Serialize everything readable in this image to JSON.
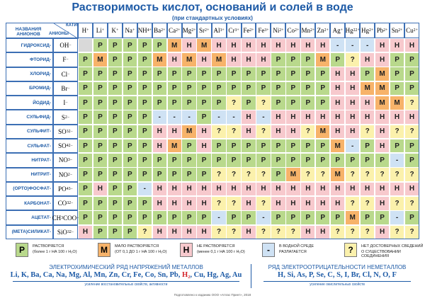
{
  "header": {
    "title": "Растворимость кислот, оснований и солей в воде",
    "subtitle": "(при стандартных условиях)",
    "corner_cations": "КАТИОНЫ",
    "corner_names": "НАЗВАНИЯ АНИОНОВ",
    "corner_anions": "АНИОНЫ"
  },
  "table": {
    "cations": [
      [
        {
          "t": "H"
        },
        {
          "sup": "+"
        }
      ],
      [
        {
          "t": "Li"
        },
        {
          "sup": "+"
        }
      ],
      [
        {
          "t": "K"
        },
        {
          "sup": "+"
        }
      ],
      [
        {
          "t": "Na"
        },
        {
          "sup": "+"
        }
      ],
      [
        {
          "t": "NH"
        },
        {
          "sub": "4"
        },
        {
          "sup": "+"
        }
      ],
      [
        {
          "t": "Ba"
        },
        {
          "sup": "2+"
        }
      ],
      [
        {
          "t": "Ca"
        },
        {
          "sup": "2+"
        }
      ],
      [
        {
          "t": "Mg"
        },
        {
          "sup": "2+"
        }
      ],
      [
        {
          "t": "Sr"
        },
        {
          "sup": "2+"
        }
      ],
      [
        {
          "t": "Al"
        },
        {
          "sup": "3+"
        }
      ],
      [
        {
          "t": "Cr"
        },
        {
          "sup": "3+"
        }
      ],
      [
        {
          "t": "Fe"
        },
        {
          "sup": "2+"
        }
      ],
      [
        {
          "t": "Fe"
        },
        {
          "sup": "3+"
        }
      ],
      [
        {
          "t": "Ni"
        },
        {
          "sup": "2+"
        }
      ],
      [
        {
          "t": "Co"
        },
        {
          "sup": "2+"
        }
      ],
      [
        {
          "t": "Mn"
        },
        {
          "sup": "2+"
        }
      ],
      [
        {
          "t": "Zn"
        },
        {
          "sup": "2+"
        }
      ],
      [
        {
          "t": "Ag"
        },
        {
          "sup": "+"
        }
      ],
      [
        {
          "t": "Hg"
        },
        {
          "sub": "2"
        },
        {
          "sup": "2+"
        }
      ],
      [
        {
          "t": "Hg"
        },
        {
          "sup": "2+"
        }
      ],
      [
        {
          "t": "Pb"
        },
        {
          "sup": "2+"
        }
      ],
      [
        {
          "t": "Sn"
        },
        {
          "sup": "2+"
        }
      ],
      [
        {
          "t": "Cu"
        },
        {
          "sup": "2+"
        }
      ]
    ],
    "rows": [
      {
        "name": "ГИДРОКСИД-",
        "anion": [
          {
            "t": "OH"
          },
          {
            "sup": "−"
          }
        ],
        "cells": [
          null,
          "Р",
          "Р",
          "Р",
          "Р",
          "Р",
          "М",
          "Н",
          "М",
          "Н",
          "Н",
          "Н",
          "Н",
          "Н",
          "Н",
          "Н",
          "Н",
          "-",
          "-",
          "-",
          "Н",
          "Н",
          "Н"
        ]
      },
      {
        "name": "ФТОРИД-",
        "anion": [
          {
            "t": "F"
          },
          {
            "sup": "−"
          }
        ],
        "cells": [
          "Р",
          "М",
          "Р",
          "Р",
          "Р",
          "М",
          "Н",
          "М",
          "Н",
          "М",
          "Н",
          "Н",
          "Н",
          "Р",
          "Р",
          "Р",
          "М",
          "Р",
          "?",
          "Н",
          "Н",
          "Р",
          "Р"
        ]
      },
      {
        "name": "ХЛОРИД-",
        "anion": [
          {
            "t": "Cl"
          },
          {
            "sup": "−"
          }
        ],
        "cells": [
          "Р",
          "Р",
          "Р",
          "Р",
          "Р",
          "Р",
          "Р",
          "Р",
          "Р",
          "Р",
          "Р",
          "Р",
          "Р",
          "Р",
          "Р",
          "Р",
          "Р",
          "Н",
          "Н",
          "Р",
          "М",
          "Р",
          "Р"
        ]
      },
      {
        "name": "БРОМИД-",
        "anion": [
          {
            "t": "Br"
          },
          {
            "sup": "−"
          }
        ],
        "cells": [
          "Р",
          "Р",
          "Р",
          "Р",
          "Р",
          "Р",
          "Р",
          "Р",
          "Р",
          "Р",
          "Р",
          "Р",
          "Р",
          "Р",
          "Р",
          "Р",
          "Р",
          "Н",
          "Н",
          "М",
          "М",
          "Р",
          "Р"
        ]
      },
      {
        "name": "ЙОДИД-",
        "anion": [
          {
            "t": "I"
          },
          {
            "sup": "−"
          }
        ],
        "cells": [
          "Р",
          "Р",
          "Р",
          "Р",
          "Р",
          "Р",
          "Р",
          "Р",
          "Р",
          "Р",
          "?",
          "Р",
          "?",
          "Р",
          "Р",
          "Р",
          "Р",
          "Н",
          "Н",
          "Н",
          "М",
          "М",
          "?"
        ]
      },
      {
        "name": "СУЛЬФИД-",
        "anion": [
          {
            "t": "S"
          },
          {
            "sup": "2−"
          }
        ],
        "cells": [
          "Р",
          "Р",
          "Р",
          "Р",
          "Р",
          "-",
          "-",
          "-",
          "Р",
          "-",
          "-",
          "Н",
          "-",
          "Н",
          "Н",
          "Н",
          "Н",
          "Н",
          "Н",
          "Н",
          "Н",
          "Н",
          "Н"
        ]
      },
      {
        "name": "СУЛЬФИТ-",
        "anion": [
          {
            "t": "SO"
          },
          {
            "sub": "3"
          },
          {
            "sup": "2−"
          }
        ],
        "cells": [
          "Р",
          "Р",
          "Р",
          "Р",
          "Р",
          "Н",
          "Н",
          "М",
          "Н",
          "?",
          "?",
          "Н",
          "?",
          "Н",
          "Н",
          "?",
          "М",
          "Н",
          "Н",
          "?",
          "Н",
          "?",
          "?"
        ]
      },
      {
        "name": "СУЛЬФАТ-",
        "anion": [
          {
            "t": "SO"
          },
          {
            "sub": "4"
          },
          {
            "sup": "2−"
          }
        ],
        "cells": [
          "Р",
          "Р",
          "Р",
          "Р",
          "Р",
          "Н",
          "М",
          "Р",
          "Н",
          "Р",
          "Р",
          "Р",
          "Р",
          "Р",
          "Р",
          "Р",
          "Р",
          "М",
          "-",
          "Р",
          "Н",
          "Р",
          "Р"
        ]
      },
      {
        "name": "НИТРАТ-",
        "anion": [
          {
            "t": "NO"
          },
          {
            "sub": "3"
          },
          {
            "sup": "−"
          }
        ],
        "cells": [
          "Р",
          "Р",
          "Р",
          "Р",
          "Р",
          "Р",
          "Р",
          "Р",
          "Р",
          "Р",
          "Р",
          "Р",
          "Р",
          "Р",
          "Р",
          "Р",
          "Р",
          "Р",
          "Р",
          "Р",
          "Р",
          "-",
          "Р"
        ]
      },
      {
        "name": "НИТРИТ-",
        "anion": [
          {
            "t": "NO"
          },
          {
            "sub": "2"
          },
          {
            "sup": "−"
          }
        ],
        "cells": [
          "Р",
          "Р",
          "Р",
          "Р",
          "Р",
          "Р",
          "Р",
          "Р",
          "Р",
          "?",
          "?",
          "?",
          "?",
          "Р",
          "М",
          "?",
          "?",
          "М",
          "?",
          "?",
          "?",
          "?",
          "?"
        ]
      },
      {
        "name": "(ОРТО)ФОСФАТ-",
        "anion": [
          {
            "t": "PO"
          },
          {
            "sub": "4"
          },
          {
            "sup": "3−"
          }
        ],
        "cells": [
          "Р",
          "Н",
          "Р",
          "Р",
          "-",
          "Н",
          "Н",
          "Н",
          "Н",
          "Н",
          "Н",
          "Н",
          "Н",
          "Н",
          "Н",
          "Н",
          "Н",
          "Н",
          "Н",
          "Н",
          "Н",
          "Н",
          "Н"
        ]
      },
      {
        "name": "КАРБОНАТ-",
        "anion": [
          {
            "t": "CO"
          },
          {
            "sub": "3"
          },
          {
            "sup": "2−"
          }
        ],
        "cells": [
          "Р",
          "Р",
          "Р",
          "Р",
          "Р",
          "Н",
          "Н",
          "Н",
          "Н",
          "?",
          "?",
          "Н",
          "?",
          "Н",
          "Н",
          "Н",
          "Н",
          "Н",
          "?",
          "?",
          "Н",
          "?",
          "?"
        ]
      },
      {
        "name": "АЦЕТАТ-",
        "anion": [
          {
            "t": "CH"
          },
          {
            "sub": "3"
          },
          {
            "t": "COO"
          },
          {
            "sup": "−"
          }
        ],
        "cells": [
          "Р",
          "Р",
          "Р",
          "Р",
          "Р",
          "Р",
          "Р",
          "Р",
          "Р",
          "-",
          "Р",
          "Р",
          "-",
          "Р",
          "Р",
          "Р",
          "Р",
          "Р",
          "М",
          "Р",
          "Р",
          "-",
          "Р"
        ]
      },
      {
        "name": "(МЕТА)СИЛИКАТ-",
        "anion": [
          {
            "t": "SiO"
          },
          {
            "sub": "3"
          },
          {
            "sup": "2−"
          }
        ],
        "cells": [
          "Н",
          "Р",
          "Р",
          "Р",
          "?",
          "Н",
          "Н",
          "Н",
          "Н",
          "?",
          "?",
          "Н",
          "?",
          "?",
          "?",
          "Н",
          "Н",
          "?",
          "?",
          "?",
          "Н",
          "?",
          "?"
        ]
      }
    ]
  },
  "legend": [
    {
      "symbol": "Р",
      "color": "#b9d98c",
      "text": "РАСТВОРЯЕТСЯ",
      "note": "(более 1 г НА 100 г H₂O)"
    },
    {
      "symbol": "М",
      "color": "#f7b36a",
      "text": "МАЛО РАСТВОРЯЕТСЯ",
      "note": "(ОТ 0,1 ДО 1 г НА 100 г H₂O)"
    },
    {
      "symbol": "Н",
      "color": "#f7c9cd",
      "text": "НЕ РАСТВОРЯЕТСЯ",
      "note": "(менее 0,1 г НА 100 г H₂O)"
    },
    {
      "symbol": "-",
      "color": "#cfe2f4",
      "text": "В ВОДНОЙ СРЕДЕ",
      "note": "РАЗЛАГАЕТСЯ"
    },
    {
      "symbol": "?",
      "color": "#fbf1ac",
      "text": "НЕТ ДОСТОВЕРНЫХ СВЕДЕНИЙ",
      "note": "О СУЩЕСТВОВАНИИ СОЕДИНЕНИЯ"
    }
  ],
  "metals": {
    "title": "ЭЛЕКТРОХИМИЧЕСКИЙ РЯД НАПРЯЖЕНИЙ МЕТАЛЛОВ",
    "items": [
      "Li",
      "K",
      "Ba",
      "Ca",
      "Na",
      "Mg",
      "Al",
      "Mn",
      "Zn",
      "Cr",
      "Fe",
      "Co",
      "Sn",
      "Pb",
      "H₂",
      "Cu",
      "Hg",
      "Ag",
      "Au"
    ],
    "highlight_index": 14,
    "note": "усиление восстановительных свойств, активности"
  },
  "nonmetals": {
    "title": "РЯД ЭЛЕКТРООТРИЦАТЕЛЬНОСТИ НЕМЕТАЛЛОВ",
    "items": [
      "H",
      "Si",
      "As",
      "P",
      "Se",
      "C",
      "S",
      "I",
      "Br",
      "Cl",
      "N",
      "O",
      "F"
    ],
    "note": "усиление окислительных свойств"
  },
  "footer": "Подготовлено к изданию ООО «Атлас Принт», 2018"
}
